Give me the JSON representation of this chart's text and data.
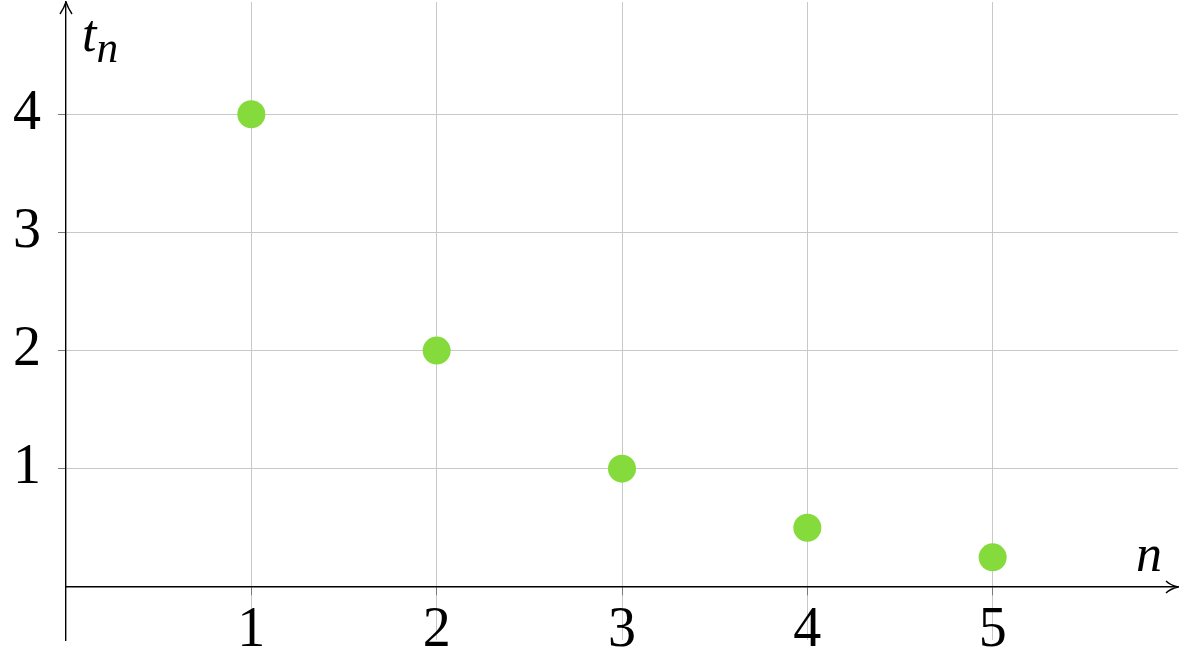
{
  "chart_data": {
    "type": "scatter",
    "xlabel": "n",
    "ylabel": "t$_{n}$",
    "x": [
      1,
      2,
      3,
      4,
      5
    ],
    "values": [
      4,
      2,
      1,
      0.5,
      0.25
    ],
    "color": "#85da3c",
    "marker": "circle",
    "xlim": [
      0,
      6
    ],
    "ylim": [
      -0.45,
      4.95
    ],
    "xticks": [
      1,
      2,
      3,
      4,
      5
    ],
    "yticks": [
      1,
      2,
      3,
      4
    ],
    "grid": true
  }
}
